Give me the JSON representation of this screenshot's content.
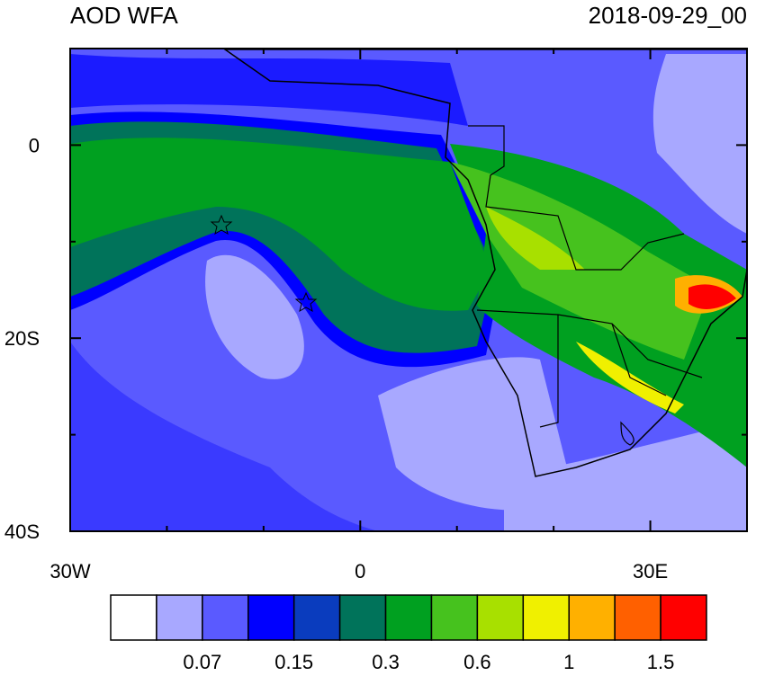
{
  "title": "AOD WFA",
  "date": "2018-09-29_00",
  "map": {
    "lon_range": [
      -30,
      40
    ],
    "lat_range": [
      -40,
      10
    ],
    "lon_ticks": [
      {
        "value": -30,
        "label": "30W"
      },
      0,
      {
        "value": 30,
        "label": "30E"
      }
    ],
    "lat_ticks": [
      0,
      {
        "value": -20,
        "label": "20S"
      },
      {
        "value": -40,
        "label": "40S"
      }
    ],
    "lon_minor_ticks": [
      -20,
      -10,
      10,
      20,
      40
    ],
    "lat_minor_ticks": [
      -10,
      -30,
      10
    ]
  },
  "colorbar": {
    "colors": [
      "#ffffff",
      "#a8a8ff",
      "#5a5aff",
      "#0000ff",
      "#0a3cbe",
      "#00735a",
      "#00a020",
      "#46c21e",
      "#a8e000",
      "#f0f000",
      "#ffb000",
      "#ff6000",
      "#ff0000"
    ],
    "labels": [
      0.07,
      0.15,
      0.3,
      0.6,
      1,
      1.5
    ]
  }
}
